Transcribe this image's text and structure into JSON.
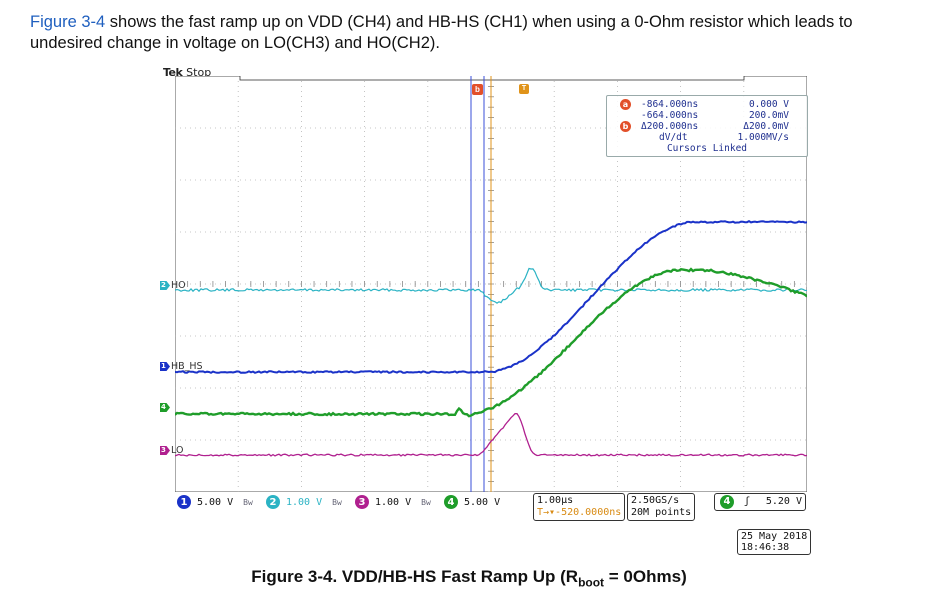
{
  "intro": {
    "link_text": "Figure 3-4",
    "rest": " shows the fast ramp up on VDD (CH4) and HB-HS (CH1) when using a 0-Ohm resistor which leads to",
    "line2": "undesired change in voltage on LO(CH3) and HO(CH2)."
  },
  "scope": {
    "brand": "Tek",
    "status": "Stop",
    "channel_labels": {
      "ho": "HO",
      "hb_hs": "HB_HS",
      "lo": "LO"
    },
    "channel_marks": {
      "ch1": "1",
      "ch2": "2",
      "ch3": "3",
      "ch4": "4"
    },
    "cursor_badge_a": "a",
    "cursor_badge_b": "b",
    "trigger_badge": "T",
    "cursor_readout": {
      "a_time": "-864.000ns",
      "b_time": "-664.000ns",
      "delta_time": "Δ200.000ns",
      "a_volt": "0.000 V",
      "b_volt": "200.0mV",
      "delta_volt": "Δ200.0mV",
      "dvdt_label": "dV/dt",
      "dvdt_value": "1.000MV/s",
      "linked": "Cursors Linked"
    },
    "channels": [
      {
        "num": "1",
        "scale": "5.00 V",
        "color": "#1a32c8"
      },
      {
        "num": "2",
        "scale": "1.00 V",
        "color": "#2bb3c4"
      },
      {
        "num": "3",
        "scale": "1.00 V",
        "color": "#b0208f"
      },
      {
        "num": "4",
        "scale": "5.00 V",
        "color": "#1f9d2a"
      }
    ],
    "bw_glyph": "Bw",
    "horizontal": {
      "time_div": "1.00µs",
      "position": "T→▾-520.0000ns"
    },
    "acquisition": {
      "rate": "2.50GS/s",
      "points": "20M points"
    },
    "trigger": {
      "channel": "4",
      "slope": "ʃ",
      "level": "5.20 V"
    },
    "date": "25 May 2018",
    "time": "18:46:38",
    "colors": {
      "ch1": "#1a32c8",
      "ch2": "#2bb3c4",
      "ch3": "#b0208f",
      "ch4": "#1f9d2a",
      "cursor": "#3a4fd8",
      "trigger": "#e0931a"
    }
  },
  "caption": {
    "main": "Figure 3-4. VDD/HB-HS Fast Ramp Up (R",
    "sub": "boot",
    "tail": " = 0Ohms)"
  }
}
